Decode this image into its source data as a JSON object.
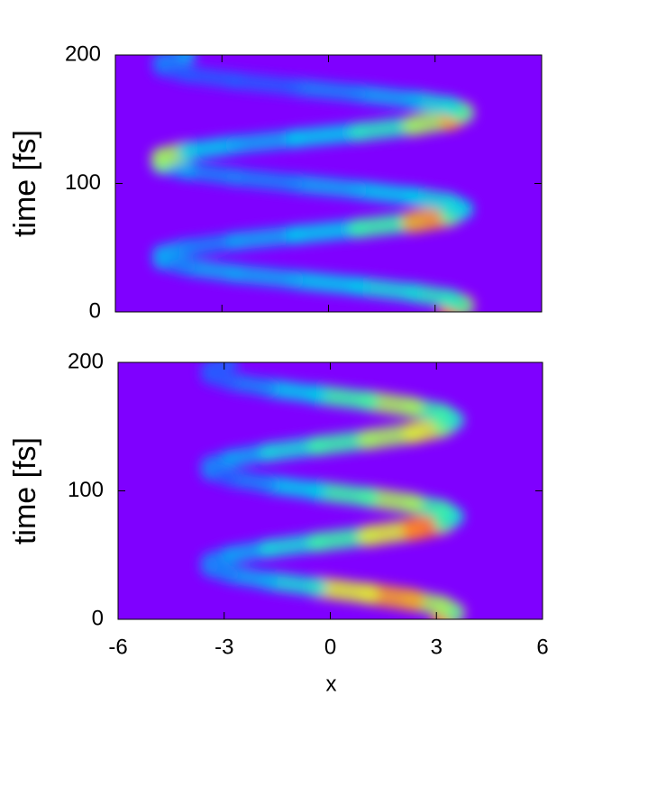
{
  "chart_data": [
    {
      "type": "heatmap",
      "ylabel": "time [fs]",
      "background": "#7f00ff",
      "xlim": [
        -6,
        6
      ],
      "ylim": [
        0,
        200
      ],
      "xticks": [
        -6,
        -3,
        0,
        3,
        6
      ],
      "yticks": [
        0,
        100,
        200
      ],
      "xticklabels": false,
      "y": [
        0,
        5,
        10,
        15,
        20,
        25,
        30,
        35,
        40,
        45,
        50,
        55,
        60,
        65,
        70,
        75,
        80,
        85,
        90,
        95,
        100,
        105,
        110,
        115,
        120,
        125,
        130,
        135,
        140,
        145,
        150,
        155,
        160,
        165,
        170,
        175,
        180,
        185,
        190,
        195,
        200
      ],
      "x": [
        3.43,
        3.8,
        3.43,
        2.38,
        0.83,
        -0.95,
        -2.65,
        -3.98,
        -4.71,
        -4.71,
        -3.98,
        -2.65,
        -0.95,
        0.83,
        2.38,
        3.43,
        3.8,
        3.43,
        2.38,
        0.83,
        -0.95,
        -2.65,
        -3.98,
        -4.71,
        -4.71,
        -3.98,
        -2.65,
        -0.95,
        0.83,
        2.38,
        3.43,
        3.8,
        3.43,
        2.38,
        0.83,
        -0.95,
        -2.65,
        -3.98,
        -4.71,
        -4.71,
        -3.98
      ],
      "z": [
        0.95,
        0.6,
        0.55,
        0.5,
        0.45,
        0.4,
        0.4,
        0.35,
        0.4,
        0.4,
        0.35,
        0.4,
        0.45,
        0.6,
        0.85,
        0.6,
        0.45,
        0.5,
        0.45,
        0.4,
        0.35,
        0.35,
        0.4,
        0.6,
        0.7,
        0.45,
        0.4,
        0.45,
        0.55,
        0.7,
        0.85,
        0.6,
        0.5,
        0.4,
        0.35,
        0.3,
        0.3,
        0.3,
        0.3,
        0.35,
        0.4
      ]
    },
    {
      "type": "heatmap",
      "ylabel": "time [fs]",
      "xlabel": "x",
      "background": "#7f00ff",
      "xlim": [
        -6,
        6
      ],
      "ylim": [
        0,
        200
      ],
      "xticks": [
        -6,
        -3,
        0,
        3,
        6
      ],
      "yticks": [
        0,
        100,
        200
      ],
      "xticklabels": true,
      "y": [
        0,
        5,
        10,
        15,
        20,
        25,
        30,
        35,
        40,
        45,
        50,
        55,
        60,
        65,
        70,
        75,
        80,
        85,
        90,
        95,
        100,
        105,
        110,
        115,
        120,
        125,
        130,
        135,
        140,
        145,
        150,
        155,
        160,
        165,
        170,
        175,
        180,
        185,
        190,
        195,
        200
      ],
      "x": [
        3.2,
        3.5,
        3.2,
        2.34,
        1.08,
        -0.37,
        -1.75,
        -2.83,
        -3.42,
        -3.42,
        -2.83,
        -1.75,
        -0.37,
        1.08,
        2.34,
        3.2,
        3.5,
        3.2,
        2.34,
        1.08,
        -0.37,
        -1.75,
        -2.83,
        -3.42,
        -3.42,
        -2.83,
        -1.75,
        -0.37,
        1.08,
        2.34,
        3.2,
        3.5,
        3.2,
        2.34,
        1.08,
        -0.37,
        -1.75,
        -2.83,
        -3.42,
        -3.42,
        -2.83
      ],
      "z": [
        0.9,
        0.6,
        0.7,
        0.85,
        0.75,
        0.5,
        0.4,
        0.35,
        0.35,
        0.35,
        0.4,
        0.5,
        0.6,
        0.75,
        0.9,
        0.6,
        0.5,
        0.6,
        0.7,
        0.6,
        0.45,
        0.35,
        0.3,
        0.35,
        0.35,
        0.4,
        0.5,
        0.6,
        0.7,
        0.75,
        0.65,
        0.5,
        0.6,
        0.7,
        0.6,
        0.45,
        0.35,
        0.3,
        0.3,
        0.3,
        0.3
      ]
    }
  ]
}
